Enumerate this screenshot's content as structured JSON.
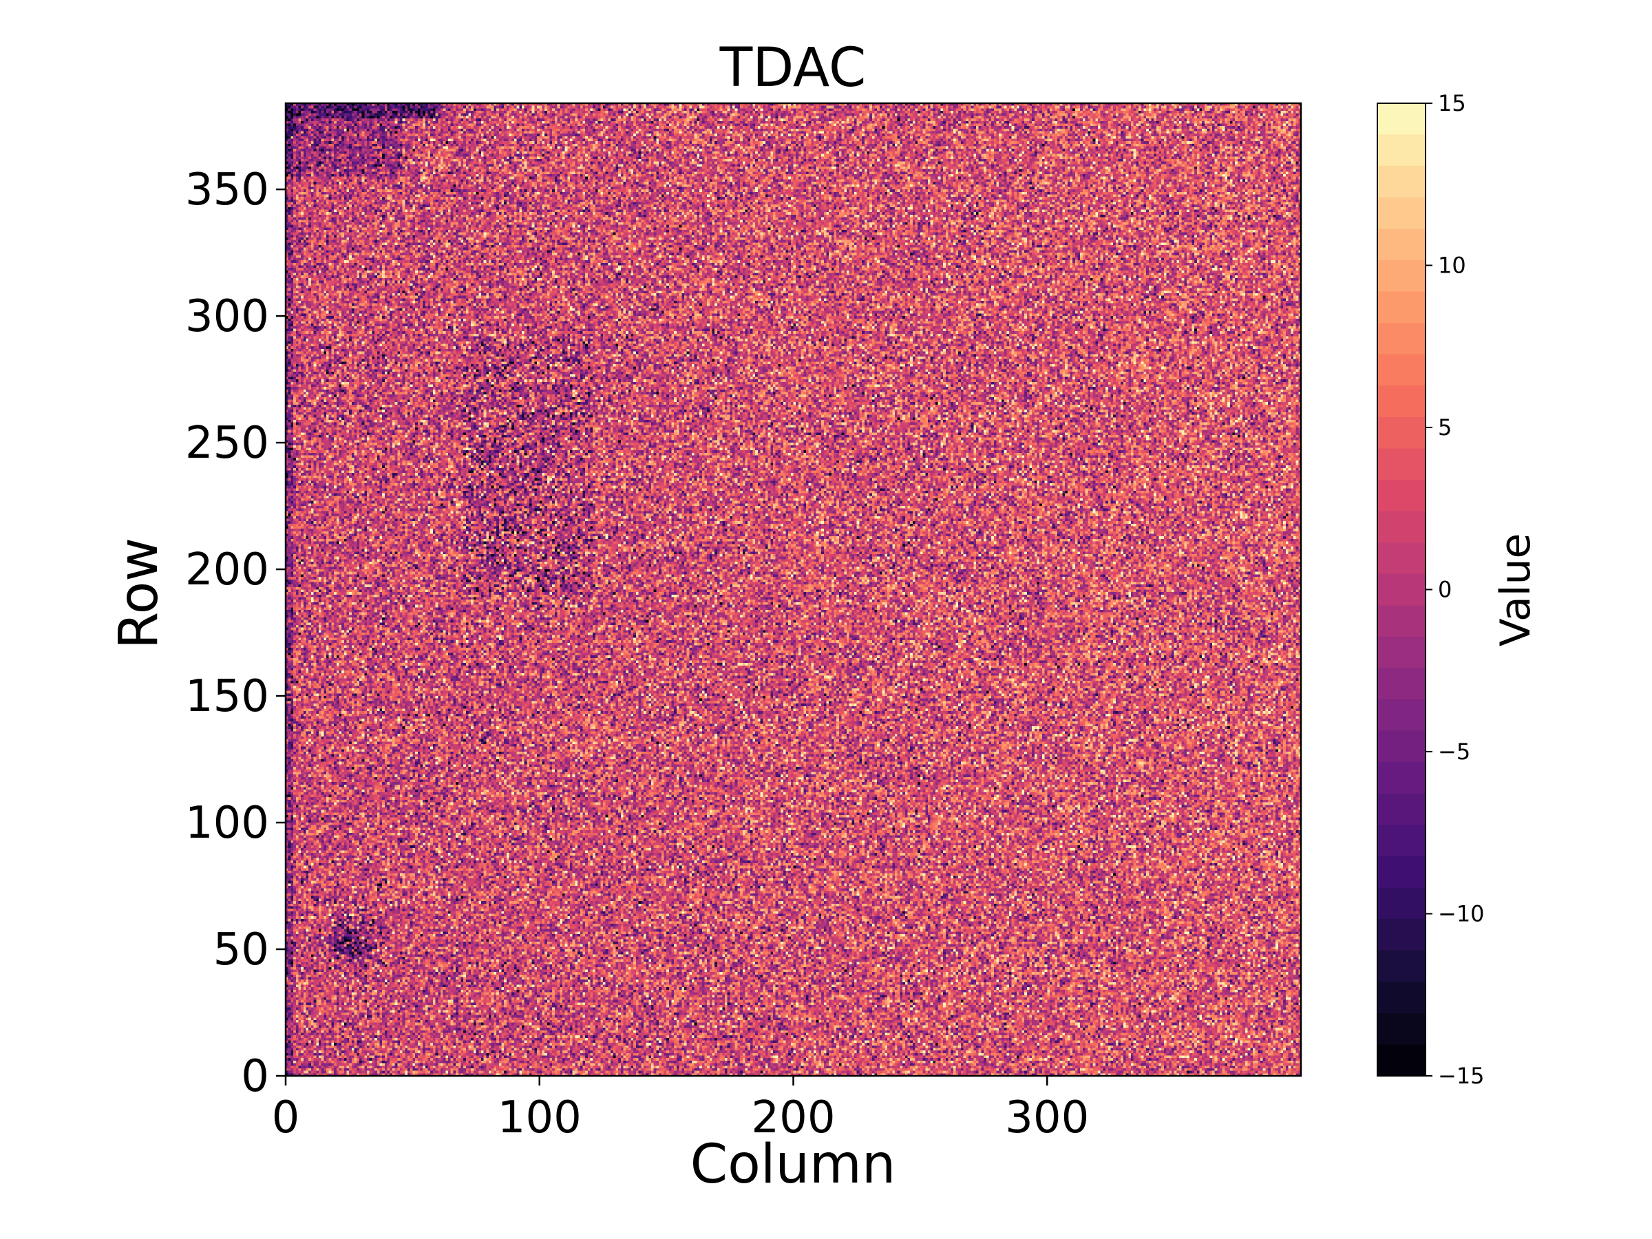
{
  "chart_data": {
    "type": "heatmap",
    "title": "TDAC",
    "xlabel": "Column",
    "ylabel": "Row",
    "xlim": [
      0,
      400
    ],
    "ylim": [
      0,
      384
    ],
    "xticks": [
      0,
      100,
      200,
      300
    ],
    "yticks": [
      0,
      50,
      100,
      150,
      200,
      250,
      300,
      350
    ],
    "grid": false,
    "colormap": "magma",
    "colormap_levels": 31,
    "value_range": [
      -15,
      15
    ],
    "typical_value_range": [
      -8,
      15
    ],
    "colorbar": {
      "label": "Value",
      "ticks": [
        -15,
        -10,
        -5,
        0,
        5,
        10,
        15
      ],
      "tick_labels": [
        "−15",
        "−10",
        "−5",
        "0",
        "5",
        "10",
        "15"
      ],
      "placement": "right"
    },
    "features": [
      {
        "description": "dark low-value cluster",
        "column": 25,
        "row": 52
      },
      {
        "description": "low-value band along top edge",
        "rows": [
          378,
          384
        ],
        "columns": [
          0,
          60
        ]
      },
      {
        "description": "scattered low-value region",
        "columns": [
          70,
          120
        ],
        "rows": [
          190,
          290
        ]
      }
    ]
  },
  "colors": {
    "background": "#ffffff",
    "axis": "#000000",
    "magma_stops": [
      "#000004",
      "#140e36",
      "#3b0f70",
      "#641a80",
      "#8c2981",
      "#b73779",
      "#de4968",
      "#f7705c",
      "#fe9f6d",
      "#fecf92",
      "#fcfdbf"
    ]
  }
}
